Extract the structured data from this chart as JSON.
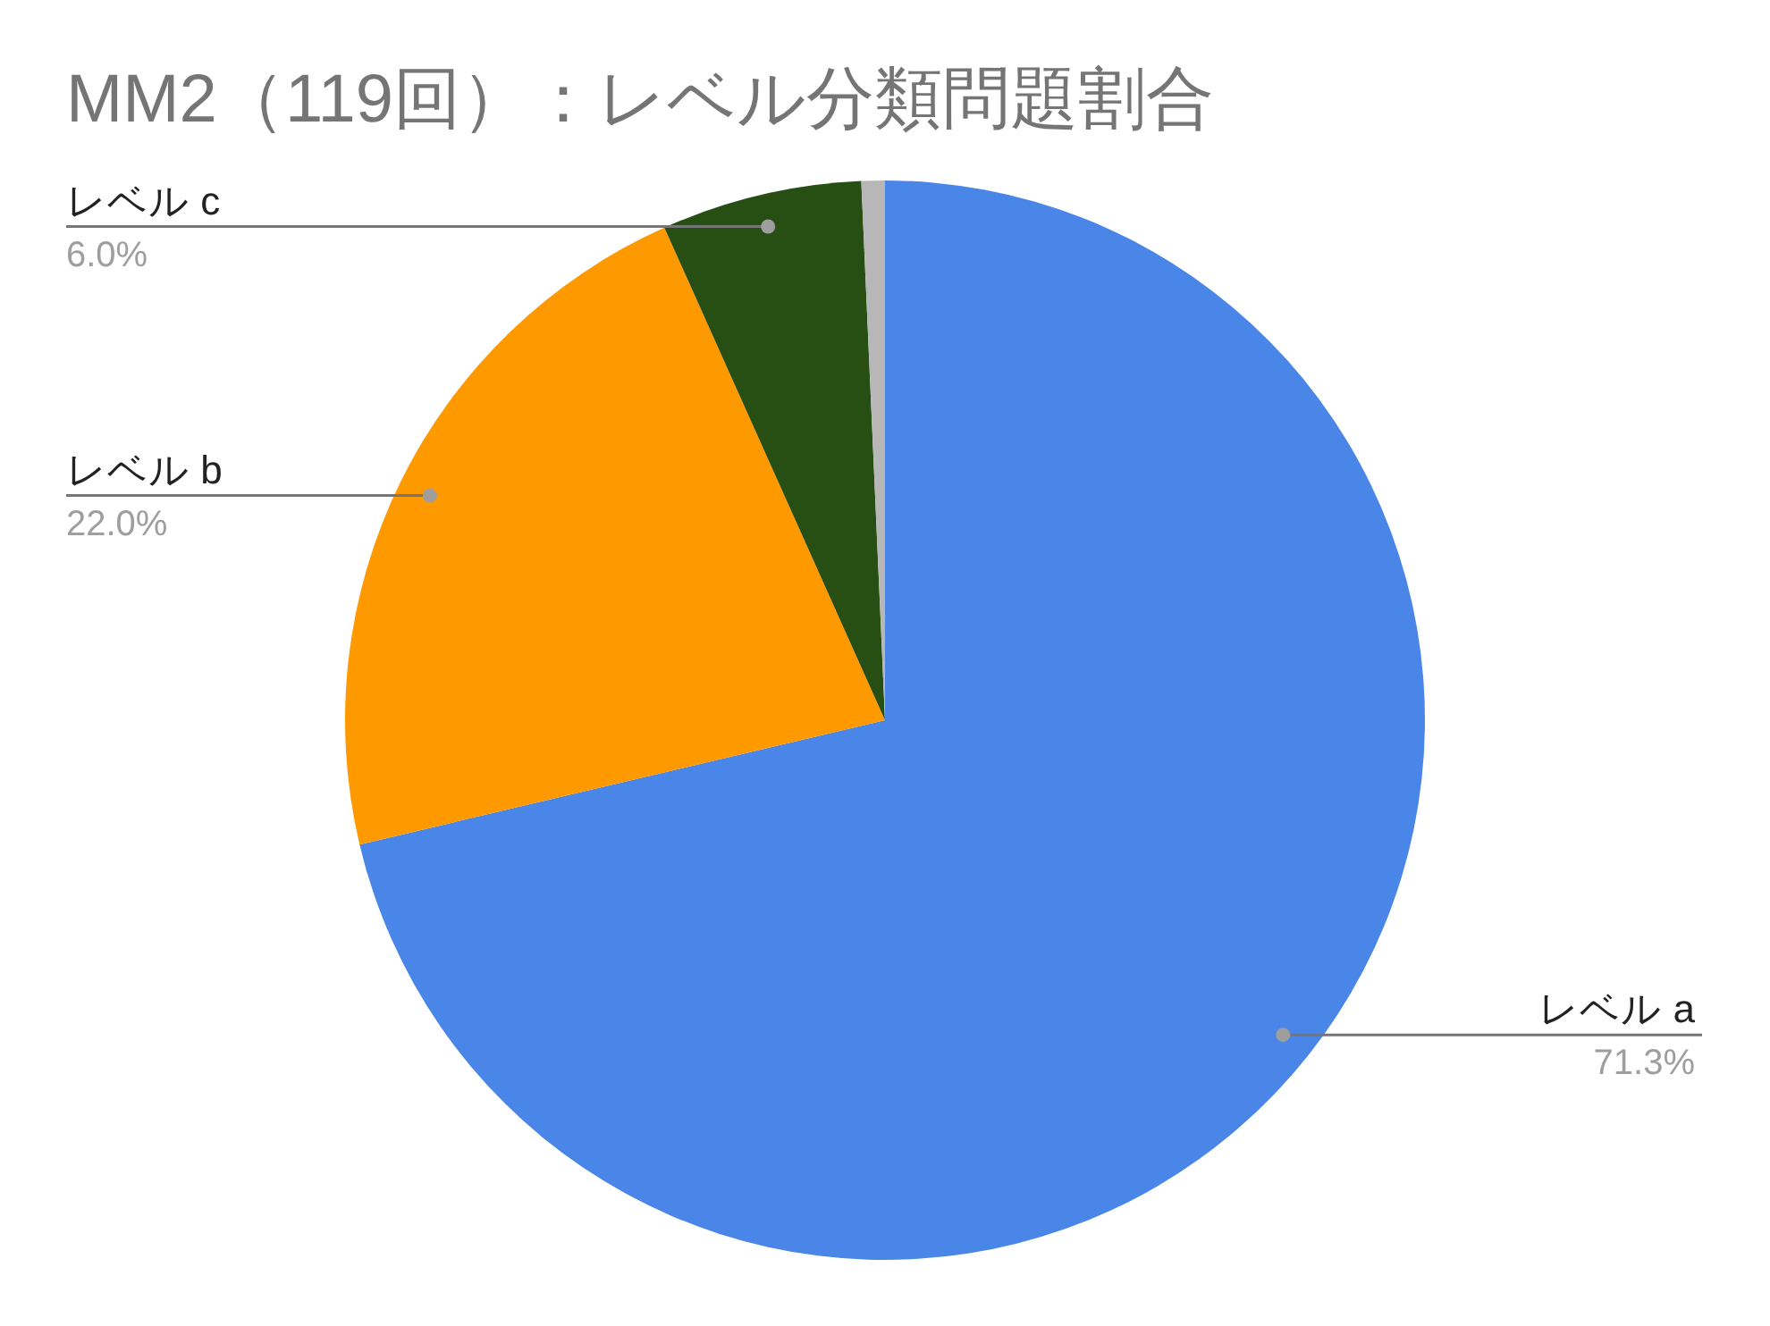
{
  "chart_data": {
    "type": "pie",
    "title": "MM2（119回）：レベル分類問題割合",
    "categories": [
      "レベル a",
      "レベル b",
      "レベル c",
      null
    ],
    "values": [
      71.3,
      22.0,
      6.0,
      0.7
    ],
    "colors": [
      "#4a86e8",
      "#ff9900",
      "#274e13",
      "#b7b7b7"
    ],
    "value_labels": [
      "71.3%",
      "22.0%",
      "6.0%",
      null
    ]
  }
}
